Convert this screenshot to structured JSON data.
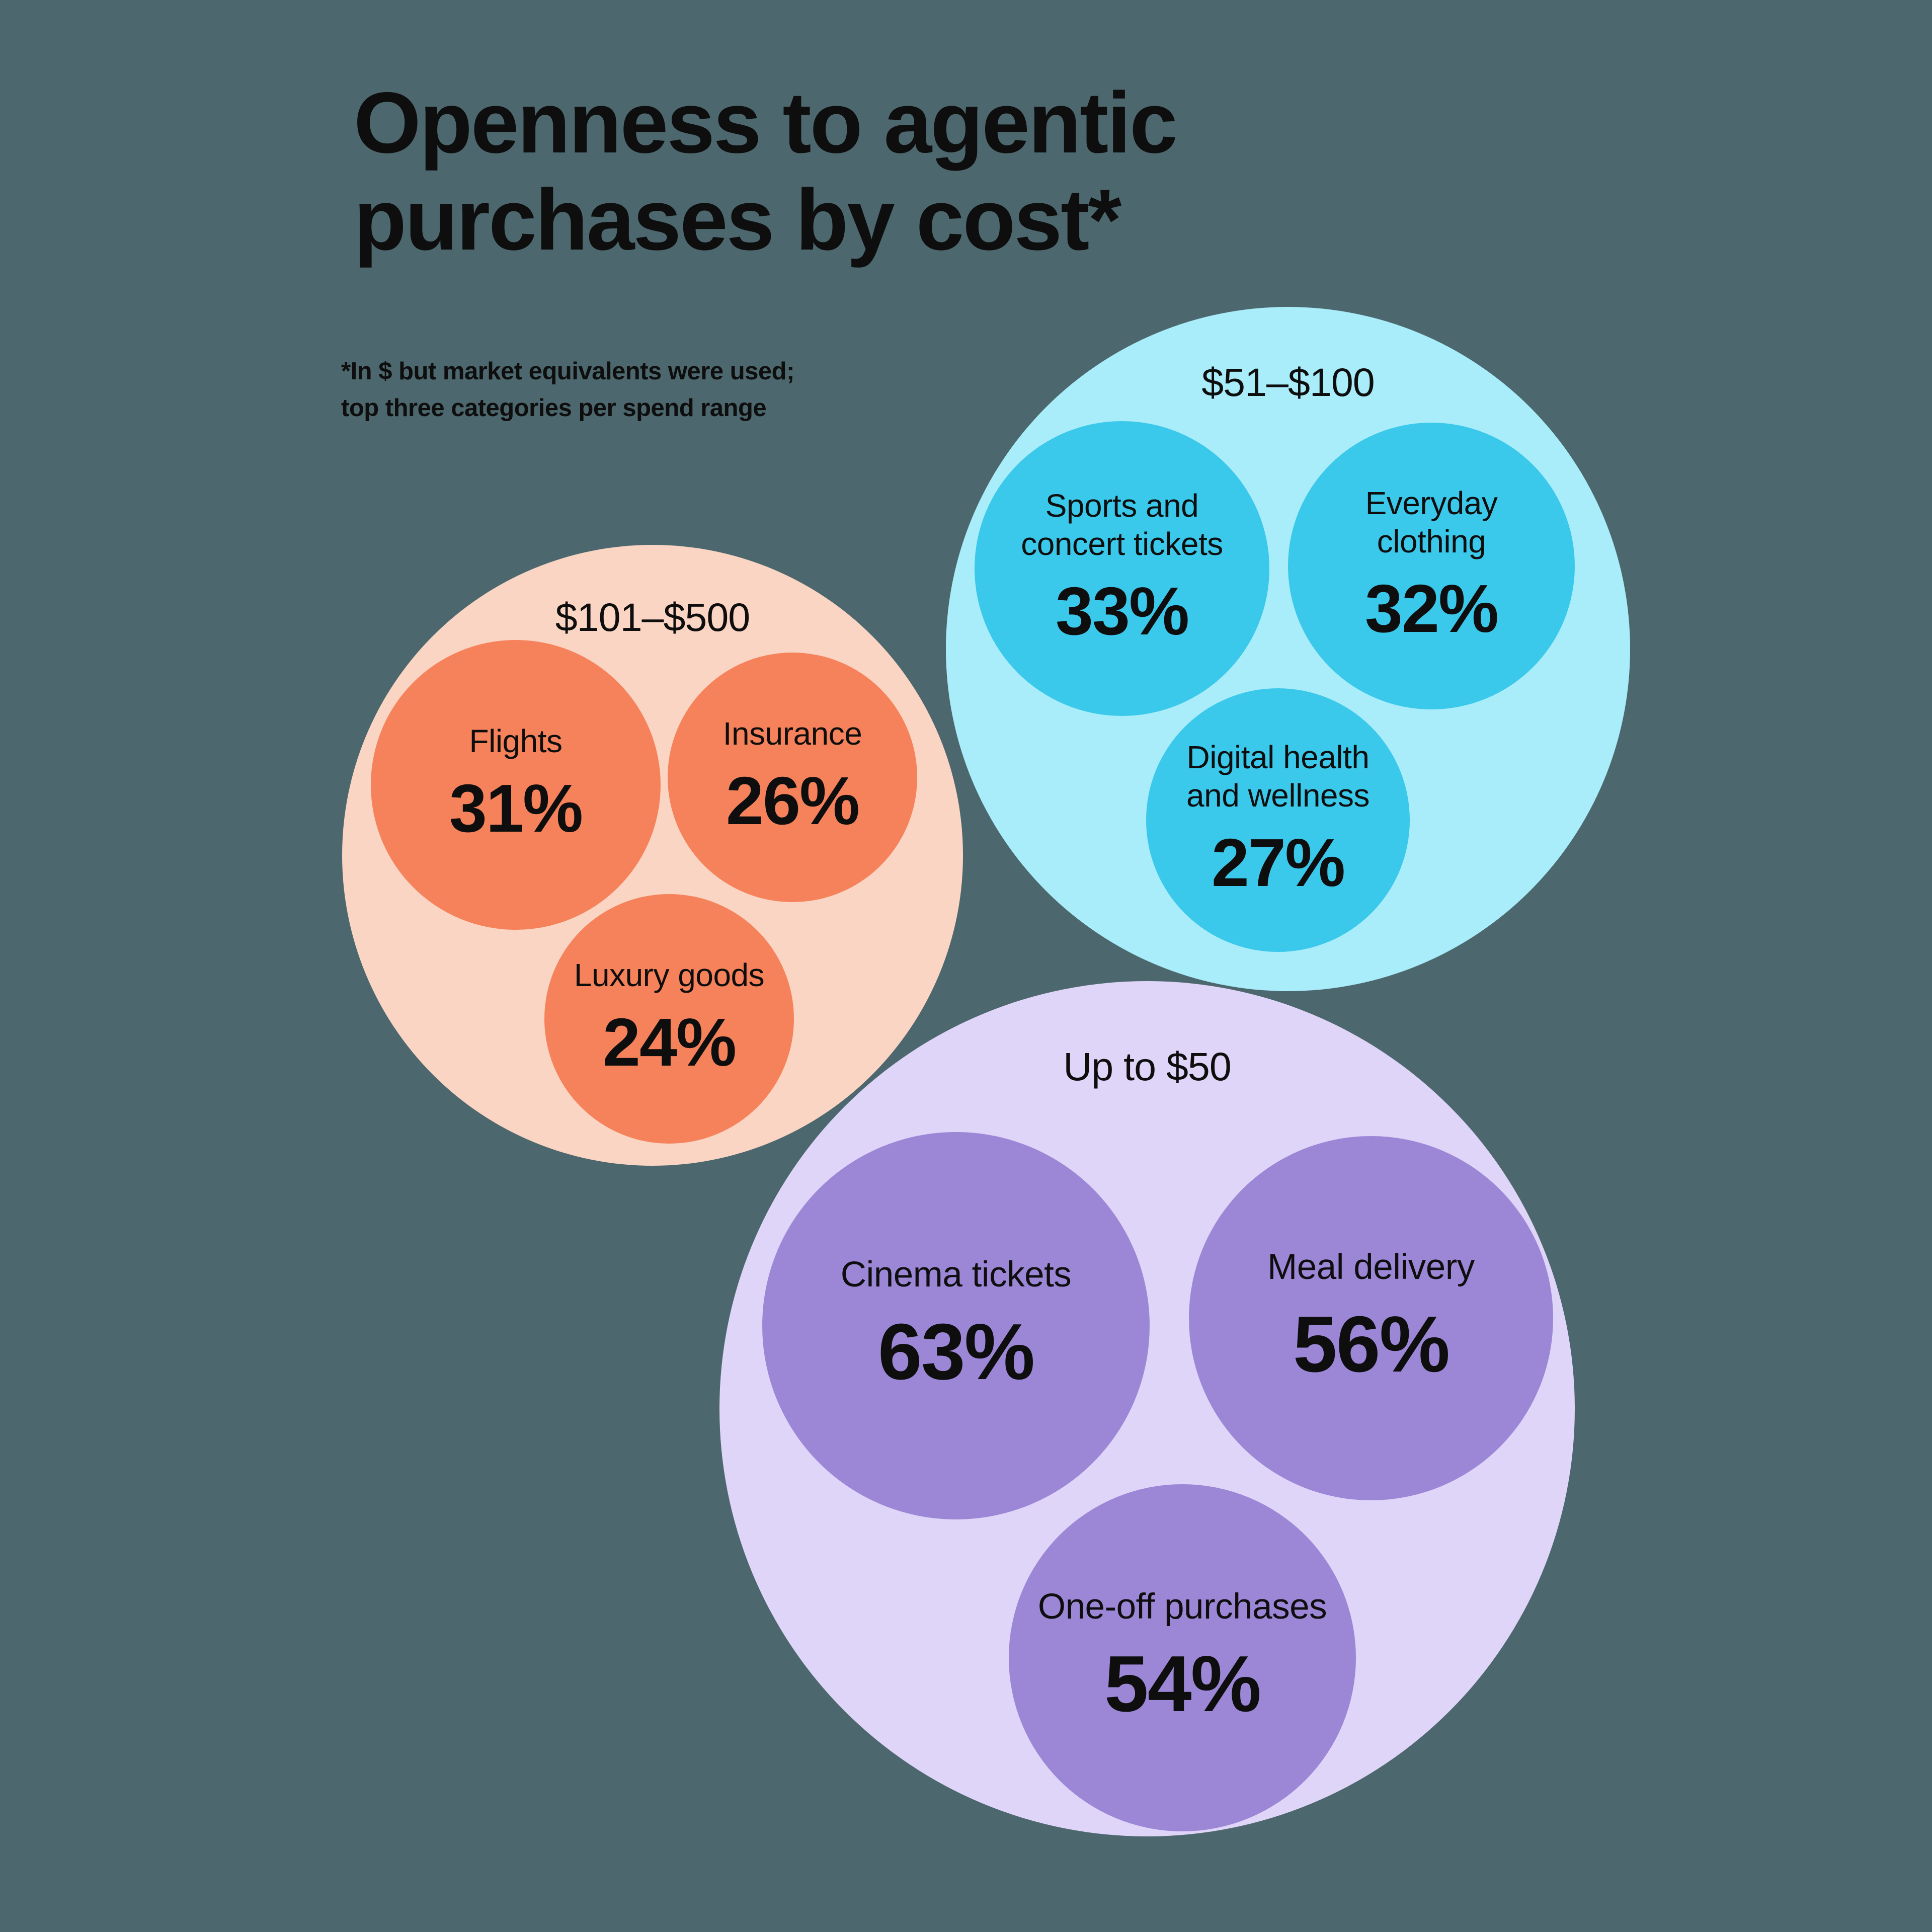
{
  "title_line1": "Openness to agentic",
  "title_line2": "purchases by cost*",
  "footnote_line1": "*In $ but market equivalents were used;",
  "footnote_line2": "top three categories per spend range",
  "colors": {
    "background": "#4C676D",
    "text": "#0E0E0E",
    "orange_outer": "#FBD5C3",
    "orange_inner": "#F5825B",
    "cyan_outer": "#A9EDFA",
    "cyan_inner": "#3AC8EB",
    "purple_outer": "#DFD5F8",
    "purple_inner": "#9C87D7"
  },
  "chart_data": {
    "type": "bubble",
    "title": "Openness to agentic purchases by cost*",
    "note": "*In $ but market equivalents were used; top three categories per spend range",
    "value_unit": "percent",
    "legend_position": "none",
    "groups": [
      {
        "range": "$101–$500",
        "outer_color": "#FBD5C3",
        "inner_color": "#F5825B",
        "items": [
          {
            "label": "Flights",
            "label_lines": [
              "Flights"
            ],
            "value": 31,
            "display": "31%"
          },
          {
            "label": "Insurance",
            "label_lines": [
              "Insurance"
            ],
            "value": 26,
            "display": "26%"
          },
          {
            "label": "Luxury goods",
            "label_lines": [
              "Luxury goods"
            ],
            "value": 24,
            "display": "24%"
          }
        ]
      },
      {
        "range": "$51–$100",
        "outer_color": "#A9EDFA",
        "inner_color": "#3AC8EB",
        "items": [
          {
            "label": "Sports and concert tickets",
            "label_lines": [
              "Sports and",
              "concert tickets"
            ],
            "value": 33,
            "display": "33%"
          },
          {
            "label": "Everyday clothing",
            "label_lines": [
              "Everyday",
              "clothing"
            ],
            "value": 32,
            "display": "32%"
          },
          {
            "label": "Digital health and wellness",
            "label_lines": [
              "Digital health",
              "and wellness"
            ],
            "value": 27,
            "display": "27%"
          }
        ]
      },
      {
        "range": "Up to $50",
        "outer_color": "#DFD5F8",
        "inner_color": "#9C87D7",
        "items": [
          {
            "label": "Cinema tickets",
            "label_lines": [
              "Cinema tickets"
            ],
            "value": 63,
            "display": "63%"
          },
          {
            "label": "Meal delivery",
            "label_lines": [
              "Meal delivery"
            ],
            "value": 56,
            "display": "56%"
          },
          {
            "label": "One-off purchases",
            "label_lines": [
              "One-off purchases"
            ],
            "value": 54,
            "display": "54%"
          }
        ]
      }
    ]
  }
}
